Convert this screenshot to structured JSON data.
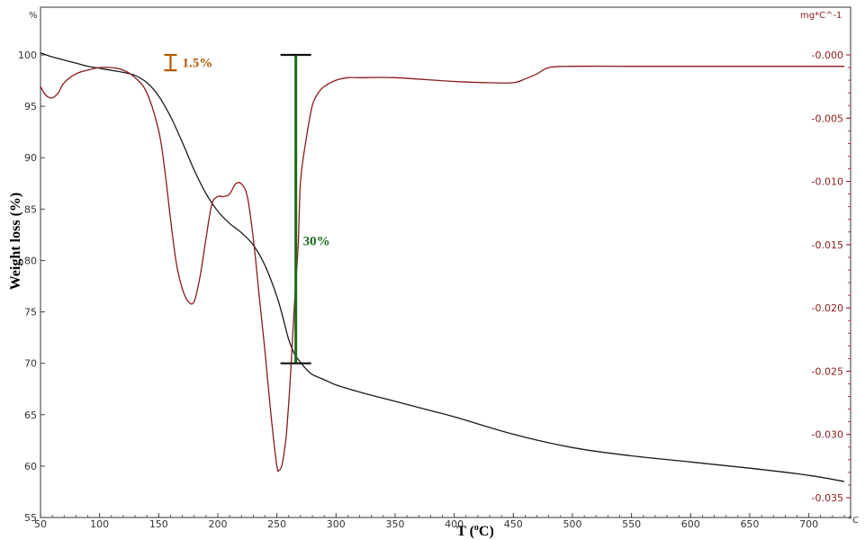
{
  "chart_data": {
    "type": "line",
    "title": "",
    "xlabel_main": "T (",
    "xlabel_sup": "o",
    "xlabel_tail": "C)",
    "ylabel": "Weight loss (%)",
    "y_unit_left": "%",
    "y_unit_right": "mg*C^-1",
    "x_unit": "°C",
    "xlim": [
      50,
      730
    ],
    "ylim_left": [
      55,
      100
    ],
    "ylim_right": [
      -0.035,
      0.0
    ],
    "x_ticks": [
      "50",
      "100",
      "150",
      "200",
      "250",
      "300",
      "350",
      "400",
      "450",
      "500",
      "550",
      "600",
      "650",
      "700"
    ],
    "y_ticks_left": [
      "55",
      "60",
      "65",
      "70",
      "75",
      "80",
      "85",
      "90",
      "95",
      "100"
    ],
    "y_ticks_right": [
      "-0.000",
      "-0.005",
      "-0.010",
      "-0.015",
      "-0.020",
      "-0.025",
      "-0.030",
      "-0.035"
    ],
    "grid": false,
    "colors": {
      "tg": "#1a1a1a",
      "dtg": "#8b1a1a",
      "annot_small": "#b35900",
      "annot_big": "#1a6b1a",
      "frame": "#555555"
    },
    "series": [
      {
        "key": "tg",
        "axis": "left",
        "x": [
          50,
          60,
          70,
          80,
          90,
          100,
          110,
          120,
          130,
          140,
          150,
          160,
          170,
          180,
          190,
          200,
          210,
          220,
          230,
          240,
          250,
          255,
          260,
          265,
          270,
          275,
          280,
          290,
          300,
          320,
          350,
          380,
          400,
          450,
          500,
          550,
          600,
          650,
          700,
          730
        ],
        "values": [
          100.2,
          99.8,
          99.5,
          99.2,
          98.9,
          98.7,
          98.5,
          98.3,
          98.0,
          97.3,
          96.0,
          94.0,
          91.5,
          88.8,
          86.5,
          84.8,
          83.6,
          82.7,
          81.5,
          79.5,
          76.5,
          74.5,
          72.3,
          70.9,
          70.1,
          69.4,
          68.9,
          68.4,
          67.9,
          67.2,
          66.3,
          65.4,
          64.8,
          63.1,
          61.8,
          61.0,
          60.4,
          59.8,
          59.1,
          58.5
        ]
      },
      {
        "key": "dtg",
        "axis": "right",
        "x": [
          50,
          53,
          56,
          60,
          65,
          70,
          80,
          90,
          100,
          110,
          120,
          130,
          140,
          150,
          155,
          160,
          165,
          170,
          175,
          180,
          185,
          190,
          195,
          200,
          205,
          210,
          215,
          220,
          225,
          230,
          235,
          240,
          245,
          250,
          252,
          254,
          256,
          258,
          260,
          262,
          265,
          268,
          270,
          275,
          280,
          285,
          290,
          300,
          310,
          320,
          350,
          400,
          430,
          450,
          460,
          470,
          480,
          500,
          550,
          600,
          650,
          700,
          730
        ],
        "values": [
          -0.0025,
          -0.003,
          -0.0033,
          -0.0034,
          -0.003,
          -0.0022,
          -0.0015,
          -0.0012,
          -0.001,
          -0.001,
          -0.0012,
          -0.0018,
          -0.003,
          -0.006,
          -0.009,
          -0.013,
          -0.0165,
          -0.0185,
          -0.0195,
          -0.0195,
          -0.0175,
          -0.0145,
          -0.0118,
          -0.0112,
          -0.0112,
          -0.011,
          -0.0102,
          -0.0102,
          -0.0112,
          -0.0145,
          -0.019,
          -0.0235,
          -0.0285,
          -0.0325,
          -0.0328,
          -0.0325,
          -0.0315,
          -0.03,
          -0.0275,
          -0.0245,
          -0.0195,
          -0.015,
          -0.01,
          -0.0065,
          -0.004,
          -0.003,
          -0.0025,
          -0.002,
          -0.0018,
          -0.0018,
          -0.0018,
          -0.0021,
          -0.0022,
          -0.0022,
          -0.0019,
          -0.0015,
          -0.001,
          -0.0009,
          -0.0009,
          -0.0009,
          -0.0009,
          -0.0009,
          -0.0009
        ]
      }
    ],
    "annotations": [
      {
        "key": "small",
        "text": "1.5%",
        "x": 160,
        "y_top": 100.0,
        "y_bottom": 98.5
      },
      {
        "key": "big",
        "text": "30%",
        "x": 266,
        "y_top": 100.0,
        "y_bottom": 70.0
      }
    ]
  }
}
